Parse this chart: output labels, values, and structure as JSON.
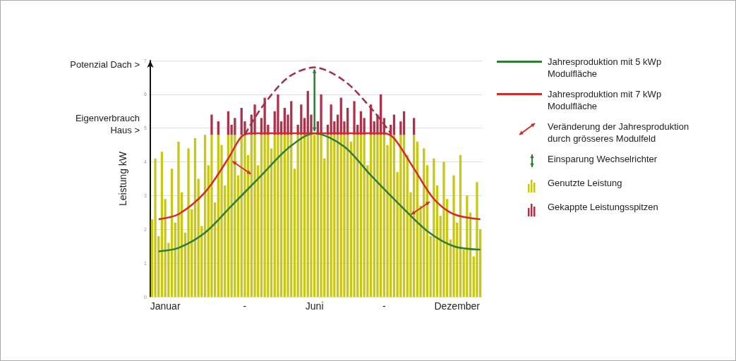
{
  "chart_data": {
    "type": "bar",
    "stacked": true,
    "ylabel": "Leistung kW",
    "categories": [
      null,
      null,
      null,
      null,
      "Januar",
      null,
      null,
      null,
      null,
      null,
      null,
      null,
      null,
      null,
      null,
      null,
      null,
      null,
      null,
      null,
      null,
      null,
      null,
      null,
      null,
      null,
      null,
      null,
      "-",
      null,
      null,
      null,
      null,
      null,
      null,
      null,
      null,
      null,
      null,
      null,
      null,
      null,
      null,
      null,
      null,
      null,
      null,
      null,
      null,
      "Juni",
      null,
      null,
      null,
      null,
      null,
      null,
      null,
      null,
      null,
      null,
      null,
      null,
      null,
      null,
      null,
      null,
      null,
      null,
      null,
      null,
      "-",
      null,
      null,
      null,
      null,
      null,
      null,
      null,
      null,
      null,
      null,
      null,
      null,
      null,
      null,
      null,
      null,
      null,
      null,
      null,
      null,
      null,
      "Dezember",
      null,
      null,
      null,
      null,
      null,
      null,
      null
    ],
    "ylim": [
      0,
      7
    ],
    "yticks": [
      0,
      1,
      2,
      3,
      4,
      5,
      6,
      7
    ],
    "grid": "y",
    "legend": "right",
    "marker": "none",
    "annotations": [
      "Potenzial Dach >",
      "Eigenverbrauch Haus >",
      "Veränderung der Jahresproduktion durch grösseres Modulfeld",
      "Einsparung Wechselrichter"
    ],
    "series": [
      {
        "name": "Genutzte Leistung",
        "color": "#c8c814",
        "values": [
          2.3,
          4.1,
          1.8,
          4.3,
          2.9,
          1.6,
          3.8,
          2.2,
          4.6,
          3.1,
          1.9,
          4.4,
          2.6,
          4.7,
          3.5,
          2.1,
          4.8,
          3.9,
          4.8,
          2.8,
          4.8,
          4.5,
          3.3,
          4.8,
          4.8,
          4.8,
          3.6,
          4.8,
          4.8,
          4.2,
          4.8,
          4.8,
          3.9,
          4.8,
          4.8,
          4.8,
          4.4,
          4.8,
          4.8,
          4.8,
          4.8,
          4.8,
          4.8,
          3.8,
          4.8,
          4.8,
          4.8,
          4.8,
          4.8,
          4.8,
          4.8,
          4.8,
          4.1,
          4.8,
          4.8,
          4.8,
          4.8,
          4.8,
          4.8,
          4.8,
          4.6,
          4.8,
          4.8,
          4.8,
          4.8,
          3.9,
          4.8,
          4.8,
          4.8,
          4.8,
          4.8,
          4.5,
          4.8,
          4.8,
          3.7,
          4.8,
          4.8,
          4.2,
          3.1,
          4.8,
          4.6,
          2.7,
          4.4,
          3.9,
          1.8,
          4.1,
          3.3,
          2.4,
          4.0,
          2.9,
          1.7,
          3.6,
          2.2,
          4.2,
          1.4,
          3.0,
          2.5,
          1.2,
          3.4,
          2.0
        ]
      },
      {
        "name": "Gekappte Leistungsspitzen",
        "color": "#b0304a",
        "values": [
          null,
          null,
          null,
          null,
          null,
          null,
          null,
          null,
          null,
          null,
          null,
          null,
          null,
          null,
          null,
          null,
          null,
          null,
          0.6,
          null,
          0.4,
          null,
          null,
          0.7,
          0.3,
          0.5,
          null,
          0.8,
          0.4,
          null,
          0.6,
          0.9,
          null,
          0.5,
          1.1,
          0.3,
          null,
          0.7,
          1.2,
          0.4,
          0.8,
          0.6,
          1.0,
          null,
          0.3,
          0.9,
          0.5,
          1.3,
          0.6,
          null,
          0.4,
          1.2,
          null,
          0.3,
          0.9,
          0.4,
          0.6,
          1.1,
          0.4,
          0.8,
          null,
          1.0,
          0.3,
          0.7,
          0.5,
          null,
          0.9,
          0.4,
          0.6,
          1.2,
          0.5,
          null,
          0.3,
          0.6,
          null,
          0.4,
          0.7,
          null,
          null,
          0.5,
          null,
          null,
          null,
          null,
          null,
          null,
          null,
          null,
          null,
          null,
          null,
          null,
          null,
          null,
          null,
          null,
          null,
          null,
          null,
          null
        ]
      },
      {
        "name": "Jahresproduktion mit 5 kWp Modulfläche",
        "type": "line",
        "color": "#2e7d32",
        "values": [
          null,
          null,
          1.35,
          null,
          null,
          null,
          null,
          null,
          1.45,
          null,
          null,
          null,
          null,
          null,
          null,
          null,
          1.9,
          null,
          null,
          null,
          null,
          null,
          null,
          null,
          2.7,
          null,
          null,
          null,
          null,
          null,
          null,
          null,
          null,
          3.6,
          null,
          null,
          null,
          null,
          null,
          null,
          null,
          4.4,
          null,
          null,
          null,
          null,
          null,
          null,
          null,
          4.85,
          null,
          null,
          null,
          null,
          null,
          null,
          null,
          null,
          4.45,
          null,
          null,
          null,
          null,
          null,
          null,
          null,
          3.6,
          null,
          null,
          null,
          null,
          null,
          null,
          null,
          null,
          2.7,
          null,
          null,
          null,
          null,
          null,
          null,
          null,
          1.95,
          null,
          null,
          null,
          null,
          null,
          null,
          null,
          1.5,
          null,
          null,
          null,
          null,
          null,
          null,
          null,
          1.4
        ]
      },
      {
        "name": "Jahresproduktion mit 7 kWp Modulfläche",
        "type": "line",
        "color": "#d42a2a",
        "values": [
          null,
          null,
          2.3,
          null,
          null,
          null,
          null,
          null,
          2.45,
          null,
          null,
          null,
          null,
          null,
          null,
          null,
          3.1,
          null,
          null,
          null,
          null,
          null,
          null,
          4.1,
          null,
          null,
          null,
          4.75,
          null,
          null,
          4.85,
          null,
          null,
          null,
          null,
          null,
          null,
          null,
          null,
          null,
          null,
          null,
          null,
          null,
          null,
          null,
          null,
          null,
          null,
          null,
          null,
          null,
          null,
          null,
          null,
          null,
          null,
          null,
          null,
          null,
          null,
          null,
          null,
          null,
          null,
          null,
          null,
          null,
          null,
          null,
          4.85,
          null,
          null,
          4.7,
          null,
          null,
          null,
          null,
          null,
          3.8,
          null,
          null,
          null,
          null,
          null,
          2.9,
          null,
          null,
          null,
          null,
          null,
          2.45,
          null,
          null,
          null,
          null,
          null,
          null,
          null,
          2.3
        ]
      },
      {
        "type": "line",
        "color": "#a0304a",
        "line_style": "dashed",
        "values": [
          null,
          null,
          null,
          null,
          null,
          null,
          null,
          null,
          null,
          null,
          null,
          null,
          null,
          null,
          null,
          null,
          null,
          null,
          null,
          null,
          null,
          null,
          null,
          null,
          null,
          null,
          null,
          null,
          4.8,
          null,
          null,
          null,
          null,
          5.6,
          null,
          null,
          null,
          null,
          null,
          null,
          null,
          6.5,
          null,
          null,
          null,
          null,
          null,
          null,
          null,
          6.8,
          null,
          null,
          null,
          null,
          null,
          null,
          null,
          null,
          6.4,
          null,
          null,
          null,
          null,
          null,
          null,
          null,
          5.6,
          null,
          null,
          null,
          null,
          null,
          4.85,
          null,
          null,
          null,
          null,
          null,
          null,
          null,
          null,
          null,
          null,
          null,
          null,
          null,
          null,
          null,
          null,
          null,
          null,
          null,
          null,
          null,
          null,
          null,
          null,
          null,
          null,
          null
        ]
      }
    ]
  }
}
